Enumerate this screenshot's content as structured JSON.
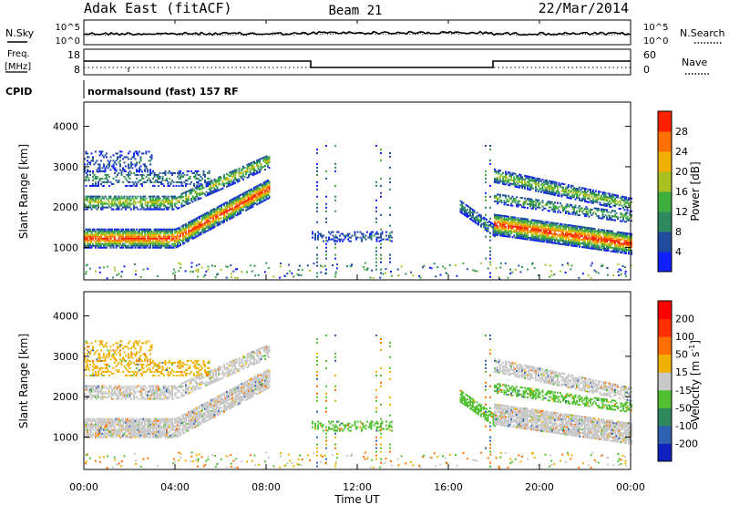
{
  "header": {
    "station": "Adak East (fitACF)",
    "beam": "Beam 21",
    "date": "22/Mar/2014"
  },
  "nsky_panel": {
    "left_label": "N.Sky",
    "right_label": "N.Search",
    "left_ticks": [
      "10^5",
      "10^0"
    ],
    "right_ticks": [
      "10^5",
      "10^0"
    ]
  },
  "freq_panel": {
    "left_label": "Freq.",
    "left_unit": "[MHz]",
    "right_label": "Nave",
    "left_ticks": [
      "18",
      "8"
    ],
    "right_ticks": [
      "60",
      "0"
    ]
  },
  "cpid": {
    "label": "CPID",
    "value": "normalsound (fast) 157 RF"
  },
  "chart_data": [
    {
      "type": "heatmap",
      "panel": "power",
      "ylabel": "Slant Range [km]",
      "yticks": [
        1000,
        2000,
        3000,
        4000
      ],
      "ylim": [
        200,
        4600
      ],
      "xlabel": "Time UT",
      "xticks": [
        "00:00",
        "04:00",
        "08:00",
        "12:00",
        "16:00",
        "20:00",
        "00:00"
      ],
      "xlim_hours": [
        0,
        24
      ],
      "colorbar": {
        "label": "Power [dB]",
        "ticks": [
          "4",
          "8",
          "12",
          "16",
          "20",
          "24",
          "28"
        ],
        "colors": [
          "#1020ff",
          "#204ca0",
          "#2e8a5e",
          "#3fae3f",
          "#a8c020",
          "#f0b000",
          "#ff7000",
          "#ff2000"
        ]
      },
      "features": [
        {
          "name": "main band (ground scatter)",
          "start_hour": 0,
          "end_hour": 8.1,
          "range_km_start": 1150,
          "range_km_end": 2200
        },
        {
          "name": "upper band",
          "start_hour": 0,
          "end_hour": 8.1,
          "range_km_start": 2200,
          "range_km_end": 3000
        },
        {
          "name": "midday patch",
          "start_hour": 10,
          "end_hour": 13.5,
          "range_km": 1300
        },
        {
          "name": "evening band",
          "start_hour": 16.5,
          "end_hour": 24,
          "range_km_start": 2000,
          "range_km_end": 1100
        },
        {
          "name": "evening upper band",
          "start_hour": 18,
          "end_hour": 24,
          "range_km_start": 3000,
          "range_km_end": 2300
        }
      ]
    },
    {
      "type": "heatmap",
      "panel": "velocity",
      "ylabel": "Slant Range [km]",
      "yticks": [
        1000,
        2000,
        3000,
        4000
      ],
      "ylim": [
        200,
        4600
      ],
      "xlabel": "Time UT",
      "xticks": [
        "00:00",
        "04:00",
        "08:00",
        "12:00",
        "16:00",
        "20:00",
        "00:00"
      ],
      "xlim_hours": [
        0,
        24
      ],
      "colorbar": {
        "label": "Velocity [m s",
        "label_sup": "-1",
        "label_end": "]",
        "ticks": [
          "200",
          "100",
          "50",
          "15",
          "-15",
          "-50",
          "-100",
          "-200"
        ],
        "colors": [
          "#1020c0",
          "#3060b0",
          "#2e8a5e",
          "#50c030",
          "#c8c8c8",
          "#f0b000",
          "#ff7000",
          "#ff3000",
          "#ff0000"
        ]
      }
    }
  ]
}
